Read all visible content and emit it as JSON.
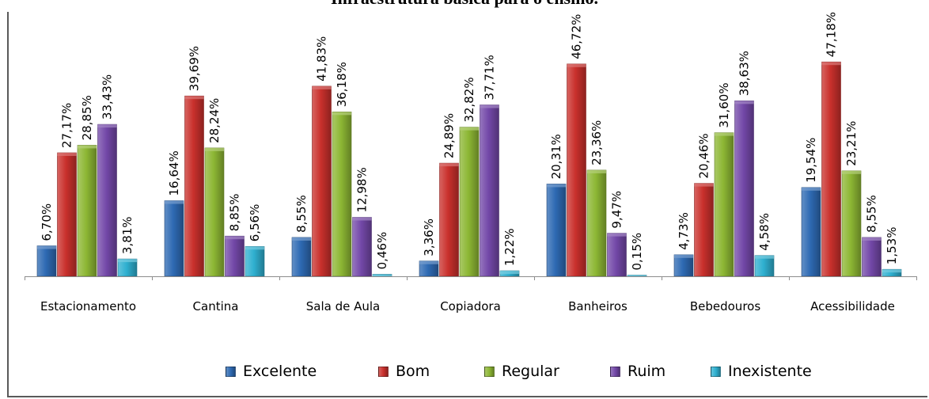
{
  "chart_data": {
    "type": "bar",
    "title": "Infraestrutura básica para o ensino.",
    "categories": [
      "Estacionamento",
      "Cantina",
      "Sala de Aula",
      "Copiadora",
      "Banheiros",
      "Bebedouros",
      "Acessibilidade"
    ],
    "series": [
      {
        "name": "Excelente",
        "color": "#2E6AB3",
        "values": [
          6.7,
          16.64,
          8.55,
          3.36,
          20.31,
          4.73,
          19.54
        ],
        "labels": [
          "6,70%",
          "16,64%",
          "8,55%",
          "3,36%",
          "20,31%",
          "4,73%",
          "19,54%"
        ]
      },
      {
        "name": "Bom",
        "color": "#C9302C",
        "values": [
          27.17,
          39.69,
          41.83,
          24.89,
          46.72,
          20.46,
          47.18
        ],
        "labels": [
          "27,17%",
          "39,69%",
          "41,83%",
          "24,89%",
          "46,72%",
          "20,46%",
          "47,18%"
        ]
      },
      {
        "name": "Regular",
        "color": "#8DB734",
        "values": [
          28.85,
          28.24,
          36.18,
          32.82,
          23.36,
          31.6,
          23.21
        ],
        "labels": [
          "28,85%",
          "28,24%",
          "36,18%",
          "32,82%",
          "23,36%",
          "31,60%",
          "23,21%"
        ]
      },
      {
        "name": "Ruim",
        "color": "#7348A8",
        "values": [
          33.43,
          8.85,
          12.98,
          37.71,
          9.47,
          38.63,
          8.55
        ],
        "labels": [
          "33,43%",
          "8,85%",
          "12,98%",
          "37,71%",
          "9,47%",
          "38,63%",
          "8,55%"
        ]
      },
      {
        "name": "Inexistente",
        "color": "#2FB0D0",
        "values": [
          3.81,
          6.56,
          0.46,
          1.22,
          0.15,
          4.58,
          1.53
        ],
        "labels": [
          "3,81%",
          "6,56%",
          "0,46%",
          "1,22%",
          "0,15%",
          "4,58%",
          "1,53%"
        ]
      }
    ],
    "ylim": [
      0,
      50
    ],
    "grid": false,
    "legend_position": "bottom"
  }
}
